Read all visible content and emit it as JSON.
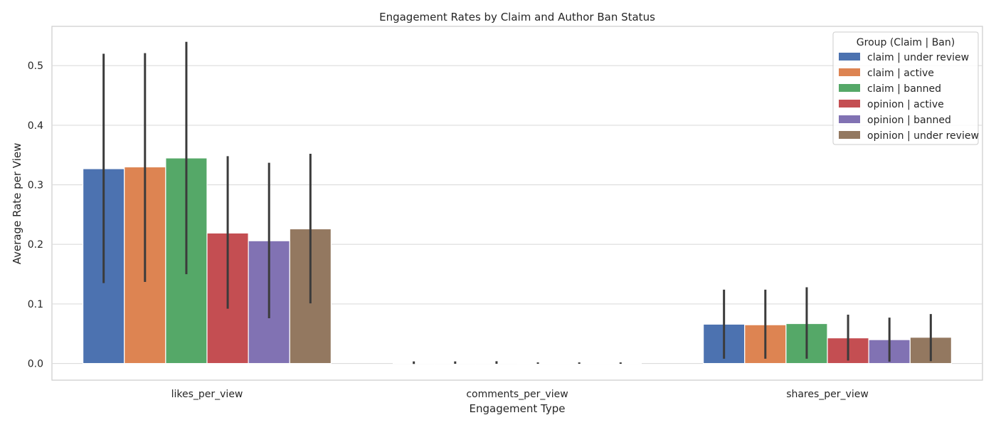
{
  "chart_data": {
    "type": "bar",
    "title": "Engagement Rates by Claim and Author Ban Status",
    "xlabel": "Engagement Type",
    "ylabel": "Average Rate per View",
    "categories": [
      "likes_per_view",
      "comments_per_view",
      "shares_per_view"
    ],
    "ylim": [
      -0.028,
      0.566
    ],
    "yticks": [
      "0.0",
      "0.1",
      "0.2",
      "0.3",
      "0.4",
      "0.5"
    ],
    "grid": true,
    "legend": {
      "title": "Group (Claim | Ban)",
      "placement": "top-right"
    },
    "series": [
      {
        "name": "claim | under review",
        "color": "#4c72b0",
        "values": [
          0.327,
          0.0012,
          0.066
        ],
        "ci_low": [
          0.135,
          -0.0008,
          0.008
        ],
        "ci_high": [
          0.52,
          0.0035,
          0.124
        ]
      },
      {
        "name": "claim | active",
        "color": "#dd8452",
        "values": [
          0.33,
          0.0012,
          0.065
        ],
        "ci_low": [
          0.137,
          -0.0005,
          0.008
        ],
        "ci_high": [
          0.521,
          0.0035,
          0.124
        ]
      },
      {
        "name": "claim | banned",
        "color": "#55a868",
        "values": [
          0.345,
          0.0013,
          0.067
        ],
        "ci_low": [
          0.15,
          -0.0005,
          0.008
        ],
        "ci_high": [
          0.54,
          0.0038,
          0.128
        ]
      },
      {
        "name": "opinion | active",
        "color": "#c44e52",
        "values": [
          0.219,
          0.0005,
          0.043
        ],
        "ci_low": [
          0.092,
          -0.0005,
          0.005
        ],
        "ci_high": [
          0.348,
          0.0018,
          0.082
        ]
      },
      {
        "name": "opinion | banned",
        "color": "#8172b3",
        "values": [
          0.206,
          0.0005,
          0.04
        ],
        "ci_low": [
          0.076,
          -0.0005,
          0.003
        ],
        "ci_high": [
          0.337,
          0.0018,
          0.077
        ]
      },
      {
        "name": "opinion | under review",
        "color": "#937860",
        "values": [
          0.226,
          0.0005,
          0.044
        ],
        "ci_low": [
          0.101,
          -0.0005,
          0.004
        ],
        "ci_high": [
          0.352,
          0.0018,
          0.083
        ]
      }
    ]
  }
}
